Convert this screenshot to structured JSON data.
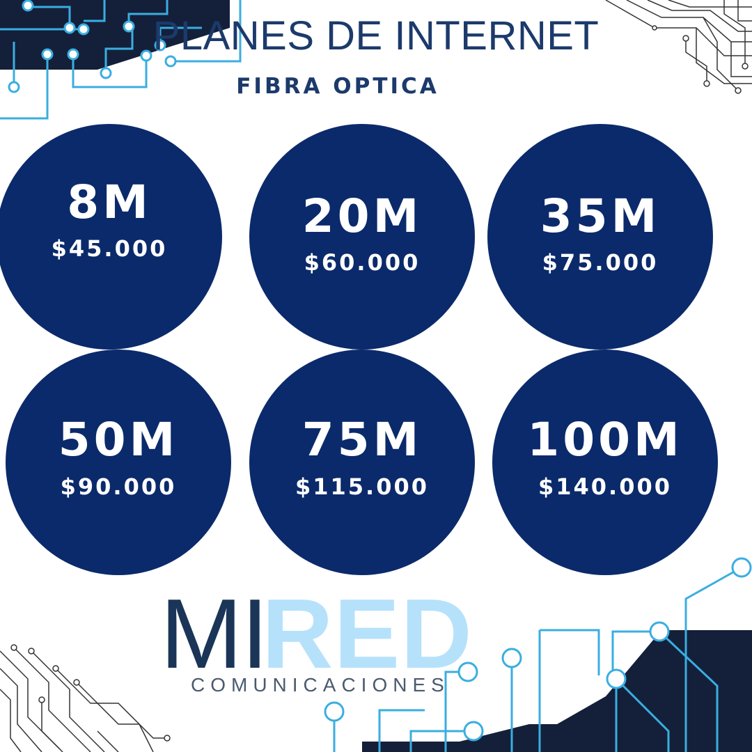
{
  "header": {
    "title": "PLANES DE INTERNET",
    "subtitle": "FIBRA OPTICA"
  },
  "plans": [
    {
      "speed": "8M",
      "price": "$45.000"
    },
    {
      "speed": "20M",
      "price": "$60.000"
    },
    {
      "speed": "35M",
      "price": "$75.000"
    },
    {
      "speed": "50M",
      "price": "$90.000"
    },
    {
      "speed": "75M",
      "price": "$115.000"
    },
    {
      "speed": "100M",
      "price": "$140.000"
    }
  ],
  "logo": {
    "mi": "MI",
    "red": "RED",
    "tagline": "COMUNICACIONES"
  },
  "colors": {
    "navy": "#0b2a6b",
    "title": "#1c3a6b",
    "light_blue": "#b6e1fb",
    "circuit_cyan": "#3aaee0",
    "dark": "#14203a"
  },
  "icons": [
    "circuit-board-decoration"
  ]
}
